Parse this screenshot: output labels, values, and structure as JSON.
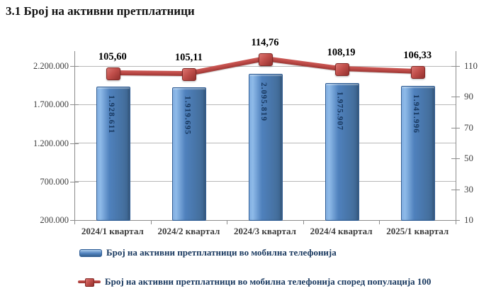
{
  "page": {
    "title": "3.1 Број на активни претплатници"
  },
  "chart_data": {
    "type": "bar",
    "combo": "bar+line",
    "title": "3.1 Број на активни претплатници",
    "categories": [
      "2024/1 квартал",
      "2024/2 квартал",
      "2024/3 квартал",
      "2024/4 квартал",
      "2025/1 квартал"
    ],
    "series": [
      {
        "name": "Број на активни претплатници во мобилна телефонија",
        "type": "bar",
        "axis": "left",
        "color": "#4f81bd",
        "values": [
          1928611,
          1919695,
          2095819,
          1975907,
          1941996
        ],
        "value_labels": [
          "1.928.611",
          "1.919.695",
          "2.095.819",
          "1.975.907",
          "1.941.996"
        ]
      },
      {
        "name": "Број на активни претплатници во мобилна телефонија според популација 100",
        "type": "line",
        "axis": "right",
        "color": "#be4b48",
        "values": [
          105.6,
          105.11,
          114.76,
          108.19,
          106.33
        ],
        "value_labels": [
          "105,60",
          "105,11",
          "114,76",
          "108,19",
          "106,33"
        ]
      }
    ],
    "left_axis": {
      "min": 200000,
      "max": 2200000,
      "tick_step": 500000,
      "tick_labels": [
        "2.200.000",
        "1.700.000",
        "1.200.000",
        "700.000",
        "200.000"
      ]
    },
    "right_axis": {
      "min": 10,
      "max": 110,
      "tick_step": 20,
      "tick_labels": [
        "110",
        "90",
        "70",
        "50",
        "30",
        "10"
      ]
    },
    "grid": true,
    "legend_position": "bottom"
  }
}
